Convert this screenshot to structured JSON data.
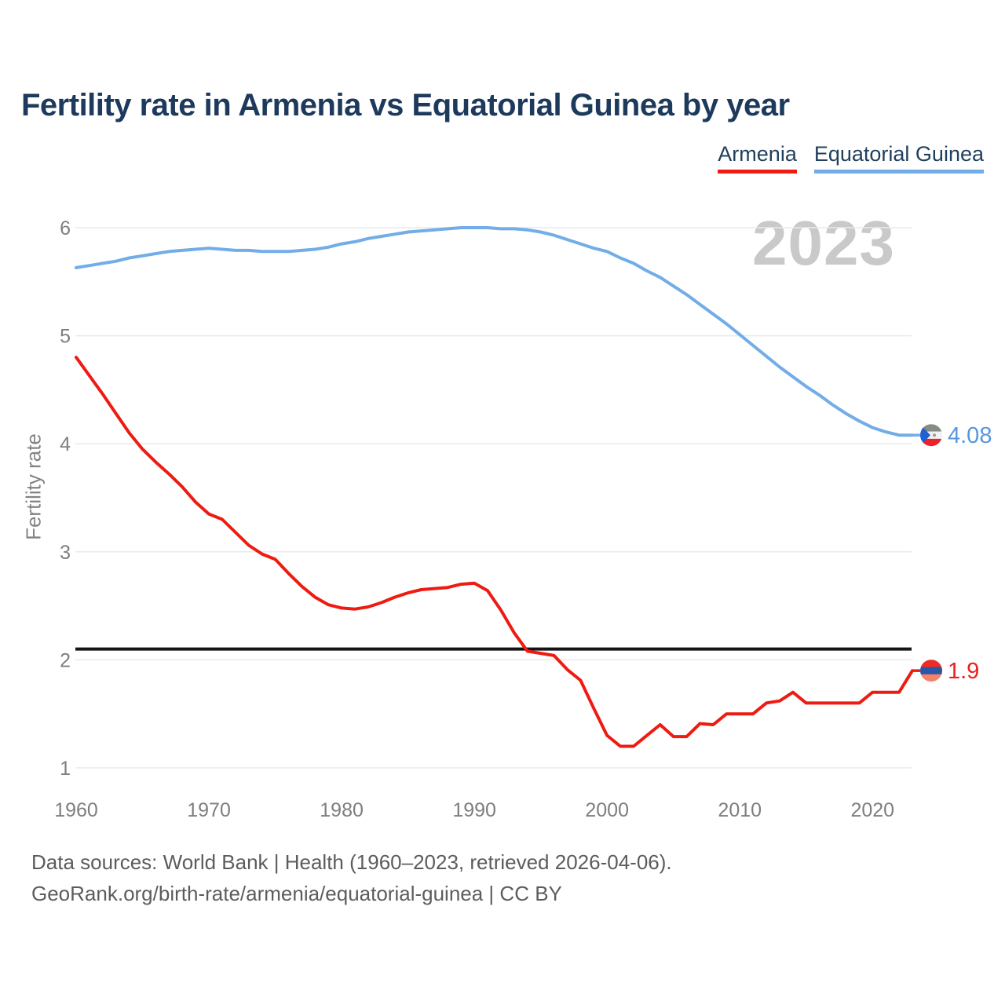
{
  "chart_data": {
    "type": "line",
    "title": "Fertility rate in Armenia vs Equatorial Guinea by year",
    "ylabel": "Fertility rate",
    "watermark": "2023",
    "year_start": 1960,
    "year_end": 2023,
    "ylim": [
      1,
      6
    ],
    "grid": true,
    "legend_position": "top-right",
    "y_ticks": [
      1,
      2,
      3,
      4,
      5,
      6
    ],
    "x_ticks": [
      1960,
      1970,
      1980,
      1990,
      2000,
      2010,
      2020
    ],
    "threshold_line": {
      "value": 2.1,
      "color": "#141414"
    },
    "axis_text_color": "#7e7e7e",
    "grid_color": "#eaeaea",
    "series": [
      {
        "name": "Armenia",
        "color": "#ee1b12",
        "label_color": "#e8211d",
        "end_label": "1.9",
        "end_value": 1.9,
        "flag": {
          "kind": "armenia",
          "stripes": [
            "#ee2c24",
            "#2b55a7",
            "#f4836b"
          ]
        },
        "values": [
          4.8,
          4.63,
          4.46,
          4.28,
          4.1,
          3.95,
          3.83,
          3.72,
          3.6,
          3.46,
          3.35,
          3.3,
          3.18,
          3.06,
          2.98,
          2.93,
          2.8,
          2.68,
          2.58,
          2.51,
          2.48,
          2.47,
          2.49,
          2.53,
          2.58,
          2.62,
          2.65,
          2.66,
          2.67,
          2.7,
          2.71,
          2.64,
          2.46,
          2.25,
          2.08,
          2.06,
          2.04,
          1.91,
          1.81,
          1.55,
          1.3,
          1.2,
          1.2,
          1.3,
          1.4,
          1.29,
          1.29,
          1.41,
          1.4,
          1.5,
          1.5,
          1.5,
          1.6,
          1.62,
          1.7,
          1.6,
          1.6,
          1.6,
          1.6,
          1.6,
          1.7,
          1.7,
          1.7,
          1.9
        ]
      },
      {
        "name": "Equatorial Guinea",
        "color": "#72ade8",
        "label_color": "#5796e0",
        "end_label": "4.08",
        "end_value": 4.08,
        "flag": {
          "kind": "equatorial-guinea",
          "stripes": [
            "#848c84",
            "#f2f2f2",
            "#e8232a"
          ],
          "triangle": "#2160d3",
          "emblem": "#9a9a9a"
        },
        "values": [
          5.63,
          5.65,
          5.67,
          5.69,
          5.72,
          5.74,
          5.76,
          5.78,
          5.79,
          5.8,
          5.81,
          5.8,
          5.79,
          5.79,
          5.78,
          5.78,
          5.78,
          5.79,
          5.8,
          5.82,
          5.85,
          5.87,
          5.9,
          5.92,
          5.94,
          5.96,
          5.97,
          5.98,
          5.99,
          6.0,
          6.0,
          6.0,
          5.99,
          5.99,
          5.98,
          5.96,
          5.93,
          5.89,
          5.85,
          5.81,
          5.78,
          5.72,
          5.67,
          5.6,
          5.54,
          5.46,
          5.38,
          5.29,
          5.2,
          5.11,
          5.01,
          4.91,
          4.81,
          4.71,
          4.62,
          4.53,
          4.45,
          4.36,
          4.28,
          4.21,
          4.15,
          4.11,
          4.08,
          4.08
        ]
      }
    ]
  },
  "footer": {
    "line1": "Data sources: World Bank | Health (1960–2023, retrieved 2026-04-06).",
    "line2": "GeoRank.org/birth-rate/armenia/equatorial-guinea | CC BY"
  }
}
